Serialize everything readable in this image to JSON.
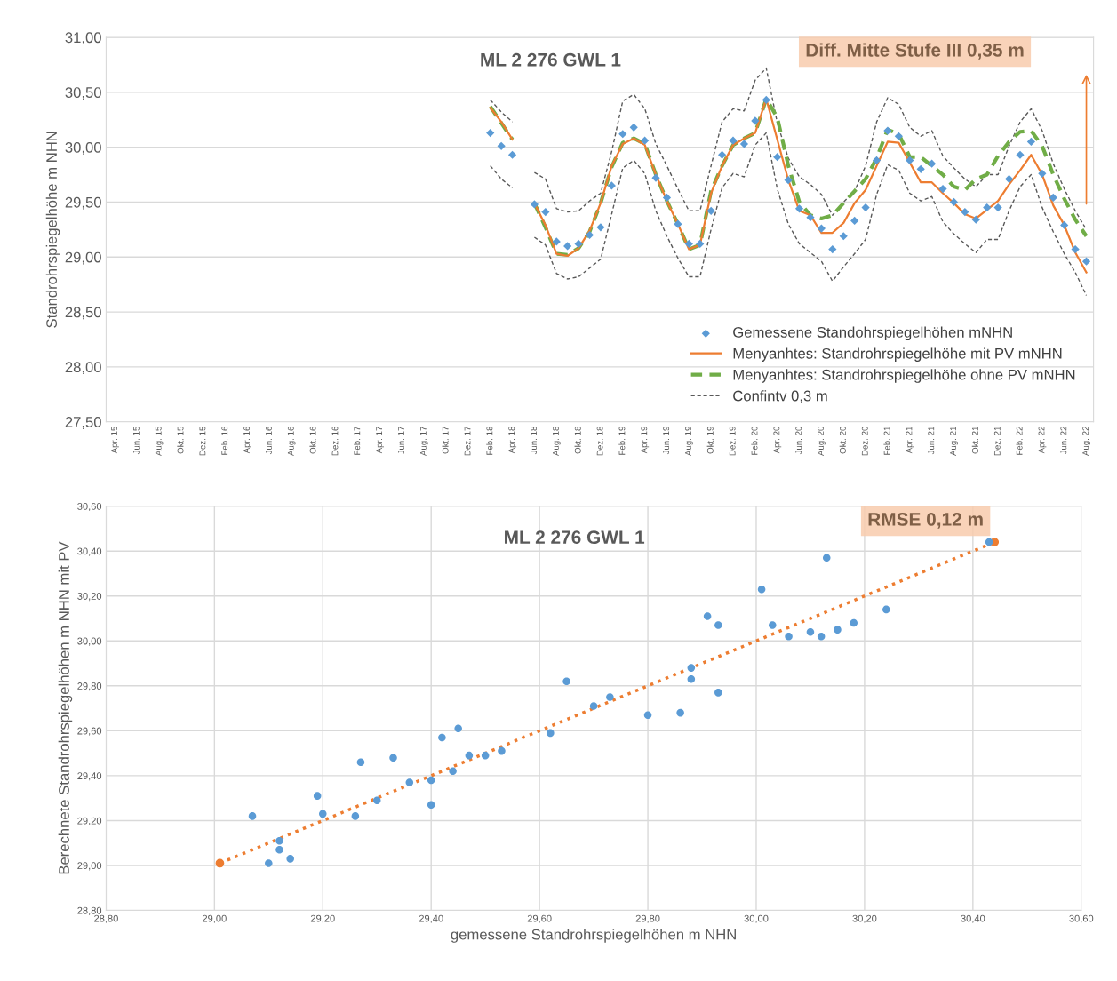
{
  "chart_data": [
    {
      "type": "line",
      "title": "ML 2 276 GWL 1",
      "ylabel": "Standrohrspiegelhöhe m NHN",
      "annotations": [
        "Diff. Mitte Stufe III 0,35 m"
      ],
      "categories": [
        "Apr. 15",
        null,
        "Jun. 15",
        null,
        "Aug. 15",
        null,
        "Okt. 15",
        null,
        "Dez. 15",
        null,
        "Feb. 16",
        null,
        "Apr. 16",
        null,
        "Jun. 16",
        null,
        "Aug. 16",
        null,
        "Okt. 16",
        null,
        "Dez. 16",
        null,
        "Feb. 17",
        null,
        "Apr. 17",
        null,
        "Jun. 17",
        null,
        "Aug. 17",
        null,
        "Okt. 17",
        null,
        "Dez. 17",
        null,
        "Feb. 18",
        null,
        "Apr. 18",
        null,
        "Jun. 18",
        null,
        "Aug. 18",
        null,
        "Okt. 18",
        null,
        "Dez. 18",
        null,
        "Feb. 19",
        null,
        "Apr. 19",
        null,
        "Jun. 19",
        null,
        "Aug. 19",
        null,
        "Okt. 19",
        null,
        "Dez. 19",
        null,
        "Feb. 20",
        null,
        "Apr. 20",
        null,
        "Jun. 20",
        null,
        "Aug. 20",
        null,
        "Okt. 20",
        null,
        "Dez. 20",
        null,
        "Feb. 21",
        null,
        "Apr. 21",
        null,
        "Jun. 21",
        null,
        "Aug. 21",
        null,
        "Okt. 21",
        null,
        "Dez. 21",
        null,
        "Feb. 22",
        null,
        "Apr. 22",
        null,
        "Jun. 22",
        null,
        "Aug. 22"
      ],
      "series": [
        {
          "name": "Gemessene Standohrspiegelhöhen mNHN",
          "type": "scatter",
          "marker": "diamond",
          "color": "#5b9bd5",
          "values": [
            null,
            null,
            null,
            null,
            null,
            null,
            null,
            null,
            null,
            null,
            null,
            null,
            null,
            null,
            null,
            null,
            null,
            null,
            null,
            null,
            null,
            null,
            null,
            null,
            null,
            null,
            null,
            null,
            null,
            null,
            null,
            null,
            null,
            null,
            30.13,
            30.01,
            29.93,
            null,
            29.48,
            29.41,
            29.14,
            29.1,
            29.12,
            29.2,
            29.27,
            29.65,
            30.12,
            30.18,
            30.06,
            29.72,
            29.54,
            29.3,
            29.12,
            29.12,
            29.42,
            29.93,
            30.06,
            30.03,
            30.24,
            30.43,
            29.91,
            29.7,
            29.44,
            29.36,
            29.26,
            29.07,
            29.19,
            29.33,
            29.45,
            29.88,
            30.15,
            30.1,
            29.88,
            29.8,
            29.85,
            29.62,
            29.5,
            29.41,
            29.34,
            29.45,
            29.45,
            29.71,
            29.93,
            30.05,
            29.76,
            29.54,
            29.29,
            29.07,
            28.96
          ]
        },
        {
          "name": "Menyanhtes: Standrohrspiegelhöhe mit PV mNHN",
          "line_style": "solid",
          "color": "#ed7d31",
          "values": [
            null,
            null,
            null,
            null,
            null,
            null,
            null,
            null,
            null,
            null,
            null,
            null,
            null,
            null,
            null,
            null,
            null,
            null,
            null,
            null,
            null,
            null,
            null,
            null,
            null,
            null,
            null,
            null,
            null,
            null,
            null,
            null,
            null,
            null,
            30.36,
            30.23,
            30.07,
            null,
            29.49,
            29.29,
            29.03,
            29.01,
            29.08,
            29.24,
            29.49,
            29.83,
            30.03,
            30.08,
            30.02,
            29.75,
            29.51,
            29.3,
            29.07,
            29.11,
            29.58,
            29.83,
            30.02,
            30.08,
            30.13,
            30.44,
            30.07,
            29.7,
            29.42,
            29.38,
            29.22,
            29.22,
            29.31,
            29.49,
            29.61,
            29.83,
            30.05,
            30.04,
            29.86,
            29.68,
            29.68,
            29.58,
            29.49,
            29.39,
            29.35,
            29.43,
            29.51,
            29.66,
            29.79,
            29.93,
            29.75,
            29.47,
            29.29,
            29.04,
            28.86
          ]
        },
        {
          "name": "Menyanhtes: Standrohrspiegelhöhe ohne PV mNHN",
          "line_style": "dashed",
          "color": "#70ad47",
          "values": [
            null,
            null,
            null,
            null,
            null,
            null,
            null,
            null,
            null,
            null,
            null,
            null,
            null,
            null,
            null,
            null,
            null,
            null,
            null,
            null,
            null,
            null,
            null,
            null,
            null,
            null,
            null,
            null,
            null,
            null,
            null,
            null,
            null,
            null,
            30.37,
            30.22,
            30.07,
            null,
            29.49,
            29.27,
            29.03,
            29.02,
            29.08,
            29.23,
            29.49,
            29.82,
            30.04,
            30.08,
            30.03,
            29.75,
            29.51,
            29.3,
            29.07,
            29.11,
            29.6,
            29.83,
            30.02,
            30.08,
            30.13,
            30.44,
            30.27,
            29.83,
            29.5,
            29.38,
            29.35,
            29.38,
            29.49,
            29.6,
            29.71,
            29.9,
            30.16,
            30.12,
            29.91,
            29.91,
            29.83,
            29.75,
            29.64,
            29.61,
            29.71,
            29.75,
            29.92,
            30.05,
            30.14,
            30.15,
            30.01,
            29.75,
            29.53,
            29.34,
            29.19
          ]
        },
        {
          "name": "Confintv 0,3 m",
          "line_style": "dashed",
          "color": "#595959",
          "values": [
            null,
            null,
            null,
            null,
            null,
            null,
            null,
            null,
            null,
            null,
            null,
            null,
            null,
            null,
            null,
            null,
            null,
            null,
            null,
            null,
            null,
            null,
            null,
            null,
            null,
            null,
            null,
            null,
            null,
            null,
            null,
            null,
            null,
            null,
            30.43,
            30.32,
            30.23,
            null,
            29.77,
            29.71,
            29.44,
            29.41,
            29.42,
            29.51,
            29.58,
            29.96,
            30.42,
            30.48,
            30.35,
            30.03,
            29.83,
            29.62,
            29.42,
            29.42,
            29.83,
            30.23,
            30.35,
            30.33,
            30.61,
            30.72,
            30.22,
            29.9,
            29.73,
            29.66,
            29.57,
            29.38,
            29.5,
            29.6,
            29.83,
            30.23,
            30.45,
            30.39,
            30.18,
            30.1,
            30.15,
            29.92,
            29.81,
            29.71,
            29.64,
            29.75,
            29.75,
            30.01,
            30.23,
            30.35,
            30.15,
            29.85,
            29.62,
            29.42,
            29.25
          ]
        },
        {
          "line_style": "dashed",
          "color": "#595959",
          "values": [
            null,
            null,
            null,
            null,
            null,
            null,
            null,
            null,
            null,
            null,
            null,
            null,
            null,
            null,
            null,
            null,
            null,
            null,
            null,
            null,
            null,
            null,
            null,
            null,
            null,
            null,
            null,
            null,
            null,
            null,
            null,
            null,
            null,
            null,
            29.83,
            29.71,
            29.63,
            null,
            29.18,
            29.11,
            28.85,
            28.8,
            28.82,
            28.9,
            28.98,
            29.39,
            29.81,
            29.88,
            29.76,
            29.42,
            29.19,
            28.99,
            28.82,
            28.82,
            29.25,
            29.63,
            29.76,
            29.73,
            30.02,
            30.13,
            29.62,
            29.3,
            29.12,
            29.04,
            28.96,
            28.78,
            28.91,
            29.03,
            29.16,
            29.57,
            29.84,
            29.79,
            29.58,
            29.51,
            29.55,
            29.32,
            29.21,
            29.12,
            29.04,
            29.16,
            29.16,
            29.42,
            29.64,
            29.75,
            29.45,
            29.23,
            29.03,
            28.86,
            28.65
          ]
        }
      ],
      "ylim": [
        27.5,
        31.0
      ],
      "yticks": [
        {
          "value": 27.5,
          "label": "27,50"
        },
        {
          "value": 28.0,
          "label": "28,00"
        },
        {
          "value": 28.5,
          "label": "28,50"
        },
        {
          "value": 29.0,
          "label": "29,00"
        },
        {
          "value": 29.5,
          "label": "29,50"
        },
        {
          "value": 30.0,
          "label": "30,00"
        },
        {
          "value": 30.5,
          "label": "30,50"
        },
        {
          "value": 31.0,
          "label": "31,00"
        }
      ],
      "grid": "y",
      "legend": "bottom right"
    },
    {
      "type": "scatter",
      "title": "ML 2 276 GWL 1",
      "xlabel": "gemessene Standrohrspiegelhöhen m NHN",
      "ylabel": "Berechnete Standrohrspiegelhöhen m NHN mit PV",
      "annotations": [
        "RMSE 0,12 m"
      ],
      "series": [
        {
          "marker": "circle",
          "color": "#5b9bd5",
          "x": [
            29.07,
            29.1,
            29.12,
            29.12,
            29.14,
            29.19,
            29.2,
            29.26,
            29.27,
            29.3,
            29.33,
            29.36,
            29.4,
            29.4,
            29.42,
            29.44,
            29.45,
            29.47,
            29.5,
            29.53,
            29.62,
            29.65,
            29.7,
            29.73,
            29.8,
            29.86,
            29.88,
            29.88,
            29.91,
            29.93,
            29.93,
            30.01,
            30.03,
            30.06,
            30.1,
            30.12,
            30.13,
            30.15,
            30.18,
            30.24,
            30.43
          ],
          "values": [
            29.22,
            29.01,
            29.11,
            29.07,
            29.03,
            29.31,
            29.23,
            29.22,
            29.46,
            29.29,
            29.48,
            29.37,
            29.38,
            29.27,
            29.57,
            29.42,
            29.61,
            29.49,
            29.49,
            29.51,
            29.59,
            29.82,
            29.71,
            29.75,
            29.67,
            29.68,
            29.88,
            29.83,
            30.11,
            30.07,
            29.77,
            30.23,
            30.07,
            30.02,
            30.04,
            30.02,
            30.37,
            30.05,
            30.08,
            30.14,
            30.44
          ]
        },
        {
          "type": "line",
          "marker": "circle",
          "line_style": "dotted",
          "color": "#ed7d31",
          "x": [
            29.01,
            30.44
          ],
          "values": [
            29.01,
            30.44
          ]
        }
      ],
      "xlim": [
        28.8,
        30.6
      ],
      "xticks": [
        {
          "value": 28.8,
          "label": "28,80"
        },
        {
          "value": 29.0,
          "label": "29,00"
        },
        {
          "value": 29.2,
          "label": "29,20"
        },
        {
          "value": 29.4,
          "label": "29,40"
        },
        {
          "value": 29.6,
          "label": "29,60"
        },
        {
          "value": 29.8,
          "label": "29,80"
        },
        {
          "value": 30.0,
          "label": "30,00"
        },
        {
          "value": 30.2,
          "label": "30,20"
        },
        {
          "value": 30.4,
          "label": "30,40"
        },
        {
          "value": 30.6,
          "label": "30,60"
        }
      ],
      "ylim": [
        28.8,
        30.6
      ],
      "yticks": [
        {
          "value": 28.8,
          "label": "28,80"
        },
        {
          "value": 29.0,
          "label": "29,00"
        },
        {
          "value": 29.2,
          "label": "29,20"
        },
        {
          "value": 29.4,
          "label": "29,40"
        },
        {
          "value": 29.6,
          "label": "29,60"
        },
        {
          "value": 29.8,
          "label": "29,80"
        },
        {
          "value": 30.0,
          "label": "30,00"
        },
        {
          "value": 30.2,
          "label": "30,20"
        },
        {
          "value": 30.4,
          "label": "30,40"
        },
        {
          "value": 30.6,
          "label": "30,60"
        }
      ],
      "grid": true
    }
  ]
}
